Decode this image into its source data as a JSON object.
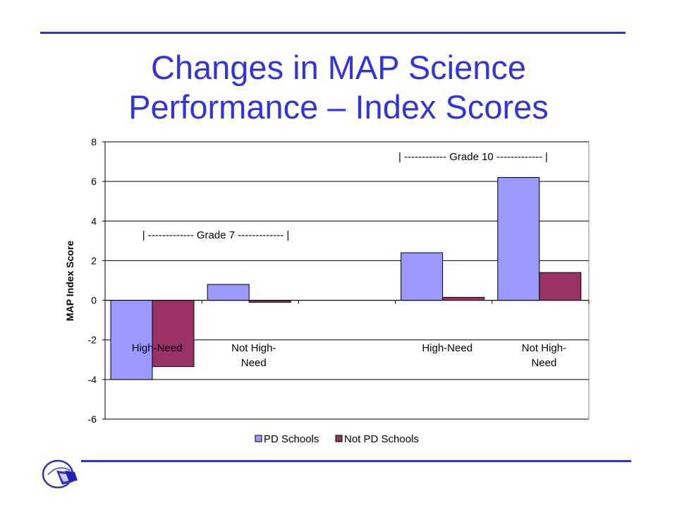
{
  "slide": {
    "title_line1": "Changes in MAP Science",
    "title_line2": "Performance – Index Scores",
    "rule_color": "#3333cc",
    "title_color": "#3333dd",
    "logo_icon": "pe-logo-icon"
  },
  "chart_data": {
    "type": "bar",
    "title": "",
    "xlabel": "",
    "ylabel": "MAP Index Score",
    "ylim": [
      -6,
      8
    ],
    "yticks": [
      "8",
      "6",
      "4",
      "2",
      "0",
      "-2",
      "-4",
      "-6"
    ],
    "categories": [
      "High-Need",
      "Not High-Need",
      "",
      "High-Need",
      "Not High-Need"
    ],
    "category_labels": [
      [
        "High-Need"
      ],
      [
        "Not High-",
        "Need"
      ],
      [],
      [
        "High-Need"
      ],
      [
        "Not High-",
        "Need"
      ]
    ],
    "series": [
      {
        "name": "PD Schools",
        "values": [
          -4.0,
          0.8,
          0,
          2.4,
          6.2
        ],
        "color": "#9999ff"
      },
      {
        "name": "Not PD Schools",
        "values": [
          -3.35,
          -0.1,
          0,
          0.15,
          1.4
        ],
        "color": "#993366"
      }
    ],
    "annotations": [
      "| -------------   Grade 7   ------------- |",
      "| ------------   Grade 10   ------------- |"
    ],
    "grid": true,
    "legend": "bottom"
  }
}
